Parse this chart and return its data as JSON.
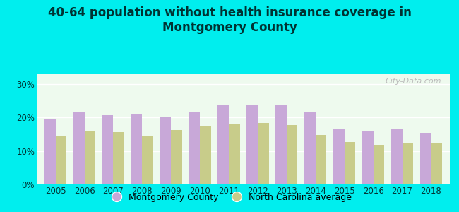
{
  "title": "40-64 population without health insurance coverage in\nMontgomery County",
  "years": [
    2005,
    2006,
    2007,
    2008,
    2009,
    2010,
    2011,
    2012,
    2013,
    2014,
    2015,
    2016,
    2017,
    2018
  ],
  "montgomery": [
    19.5,
    21.5,
    20.7,
    21.0,
    20.3,
    21.5,
    23.7,
    24.0,
    23.7,
    21.5,
    16.8,
    16.0,
    16.8,
    15.5
  ],
  "nc_average": [
    14.5,
    16.0,
    15.7,
    14.5,
    16.3,
    17.3,
    18.0,
    18.5,
    17.8,
    14.8,
    12.7,
    11.8,
    12.5,
    12.3
  ],
  "montgomery_color": "#c8a8d8",
  "nc_color": "#c8cc8a",
  "background_outer": "#00eeee",
  "background_chart": "#eefaee",
  "title_color": "#003333",
  "ytick_labels": [
    "0%",
    "10%",
    "20%",
    "30%"
  ],
  "ytick_values": [
    0,
    10,
    20,
    30
  ],
  "ylim": [
    0,
    33
  ],
  "bar_width": 0.38,
  "legend_montgomery": "Montgomery County",
  "legend_nc": "North Carolina average",
  "title_fontsize": 12,
  "tick_fontsize": 8.5,
  "legend_fontsize": 9
}
